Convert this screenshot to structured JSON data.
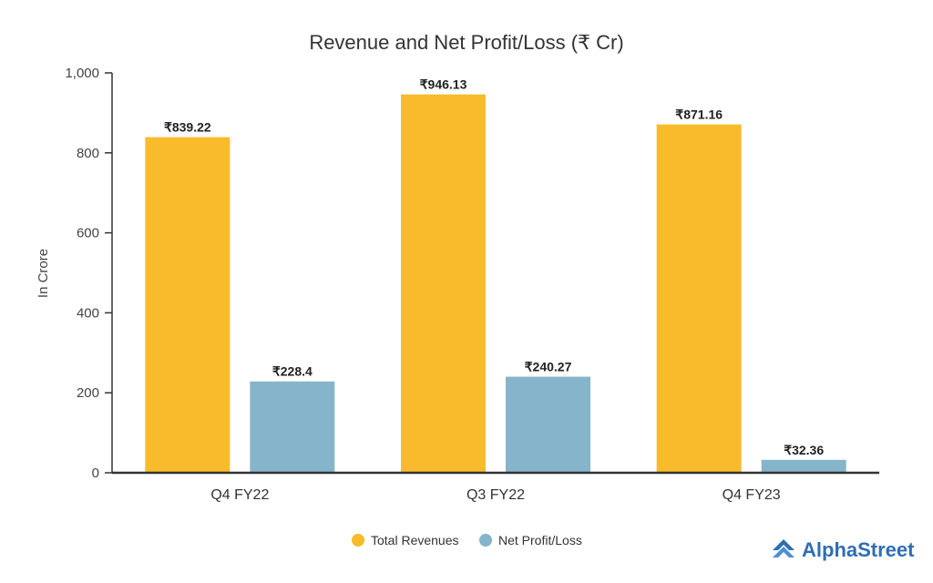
{
  "chart_data": {
    "type": "bar",
    "title": "Revenue and Net Profit/Loss (₹ Cr)",
    "xlabel": "",
    "ylabel": "In Crore",
    "ylim": [
      0,
      1000
    ],
    "yticks": [
      0,
      200,
      400,
      600,
      800,
      1000
    ],
    "ytick_labels": [
      "0",
      "200",
      "400",
      "600",
      "800",
      "1,000"
    ],
    "categories": [
      "Q4 FY22",
      "Q3 FY22",
      "Q4 FY23"
    ],
    "series": [
      {
        "name": "Total Revenues",
        "color": "#f7bb2b",
        "values": [
          839.22,
          946.13,
          871.16
        ],
        "labels": [
          "₹839.22",
          "₹946.13",
          "₹871.16"
        ]
      },
      {
        "name": "Net Profit/Loss",
        "color": "#86b5cb",
        "values": [
          228.4,
          240.27,
          32.36
        ],
        "labels": [
          "₹228.4",
          "₹240.27",
          "₹32.36"
        ]
      }
    ],
    "grid": false,
    "legend_position": "bottom-center"
  },
  "brand": {
    "name": "AlphaStreet",
    "color": "#2f6db5",
    "icon": "alphastreet-logo-icon"
  }
}
